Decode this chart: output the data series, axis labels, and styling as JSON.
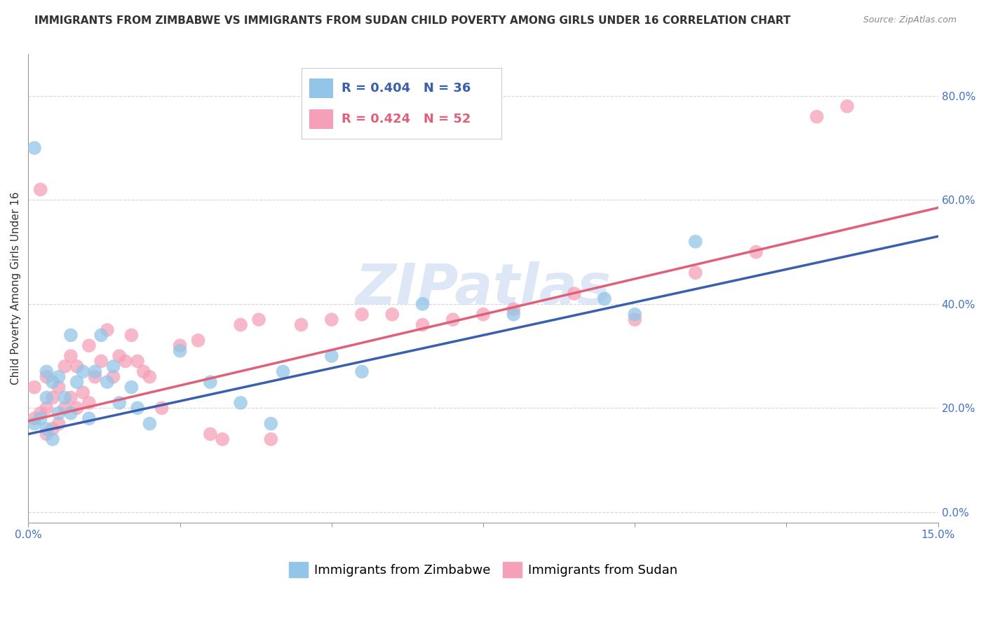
{
  "title": "IMMIGRANTS FROM ZIMBABWE VS IMMIGRANTS FROM SUDAN CHILD POVERTY AMONG GIRLS UNDER 16 CORRELATION CHART",
  "source": "Source: ZipAtlas.com",
  "ylabel": "Child Poverty Among Girls Under 16",
  "watermark": "ZIPatlas",
  "xlim": [
    0.0,
    0.15
  ],
  "ylim": [
    -0.02,
    0.88
  ],
  "xticks": [
    0.0,
    0.025,
    0.05,
    0.075,
    0.1,
    0.125,
    0.15
  ],
  "yticks": [
    0.0,
    0.2,
    0.4,
    0.6,
    0.8
  ],
  "ytick_labels": [
    "0.0%",
    "20.0%",
    "40.0%",
    "60.0%",
    "80.0%"
  ],
  "zimbabwe_color": "#92C5E8",
  "sudan_color": "#F5A0B8",
  "zimbabwe_line_color": "#3A5FAD",
  "sudan_line_color": "#E0607A",
  "legend_R_zimbabwe": "R = 0.404",
  "legend_N_zimbabwe": "N = 36",
  "legend_R_sudan": "R = 0.424",
  "legend_N_sudan": "N = 52",
  "zimbabwe_line": [
    0.0,
    0.15,
    0.15,
    0.53
  ],
  "sudan_line": [
    0.0,
    0.175,
    0.15,
    0.585
  ],
  "zimbabwe_x": [
    0.001,
    0.001,
    0.002,
    0.003,
    0.003,
    0.003,
    0.004,
    0.004,
    0.005,
    0.005,
    0.006,
    0.007,
    0.007,
    0.008,
    0.009,
    0.01,
    0.011,
    0.012,
    0.013,
    0.014,
    0.015,
    0.017,
    0.018,
    0.02,
    0.025,
    0.03,
    0.035,
    0.04,
    0.042,
    0.05,
    0.055,
    0.065,
    0.08,
    0.095,
    0.1,
    0.11
  ],
  "zimbabwe_y": [
    0.17,
    0.7,
    0.18,
    0.16,
    0.22,
    0.27,
    0.14,
    0.25,
    0.19,
    0.26,
    0.22,
    0.19,
    0.34,
    0.25,
    0.27,
    0.18,
    0.27,
    0.34,
    0.25,
    0.28,
    0.21,
    0.24,
    0.2,
    0.17,
    0.31,
    0.25,
    0.21,
    0.17,
    0.27,
    0.3,
    0.27,
    0.4,
    0.38,
    0.41,
    0.38,
    0.52
  ],
  "sudan_x": [
    0.001,
    0.001,
    0.002,
    0.002,
    0.003,
    0.003,
    0.003,
    0.004,
    0.004,
    0.005,
    0.005,
    0.006,
    0.006,
    0.007,
    0.007,
    0.008,
    0.008,
    0.009,
    0.01,
    0.01,
    0.011,
    0.012,
    0.013,
    0.014,
    0.015,
    0.016,
    0.017,
    0.018,
    0.019,
    0.02,
    0.022,
    0.025,
    0.028,
    0.03,
    0.032,
    0.035,
    0.038,
    0.04,
    0.045,
    0.05,
    0.055,
    0.06,
    0.065,
    0.07,
    0.075,
    0.08,
    0.09,
    0.1,
    0.11,
    0.12,
    0.13,
    0.135
  ],
  "sudan_y": [
    0.18,
    0.24,
    0.62,
    0.19,
    0.15,
    0.2,
    0.26,
    0.16,
    0.22,
    0.17,
    0.24,
    0.2,
    0.28,
    0.22,
    0.3,
    0.2,
    0.28,
    0.23,
    0.21,
    0.32,
    0.26,
    0.29,
    0.35,
    0.26,
    0.3,
    0.29,
    0.34,
    0.29,
    0.27,
    0.26,
    0.2,
    0.32,
    0.33,
    0.15,
    0.14,
    0.36,
    0.37,
    0.14,
    0.36,
    0.37,
    0.38,
    0.38,
    0.36,
    0.37,
    0.38,
    0.39,
    0.42,
    0.37,
    0.46,
    0.5,
    0.76,
    0.78
  ],
  "title_fontsize": 11,
  "label_fontsize": 11,
  "tick_fontsize": 11,
  "legend_fontsize": 13
}
